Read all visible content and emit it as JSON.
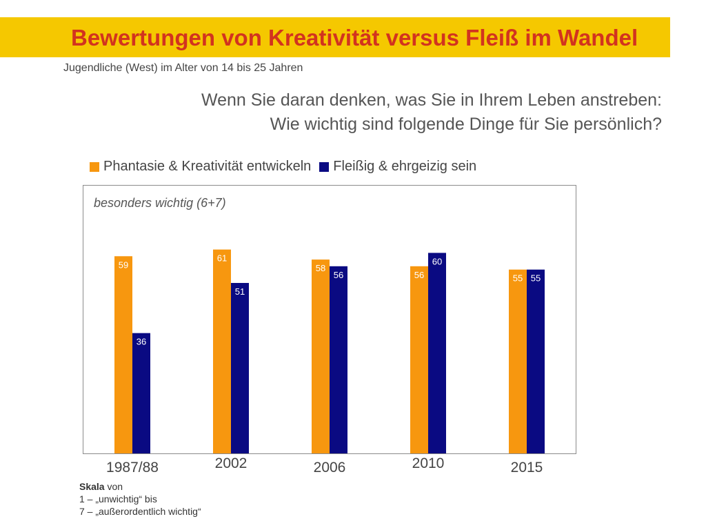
{
  "title": "Bewertungen von Kreativität versus Fleiß im Wandel",
  "subtitle": "Jugendliche (West) im Alter von 14 bis 25 Jahren",
  "question": {
    "line1": "Wenn Sie daran denken, was Sie in Ihrem Leben anstreben:",
    "line2": "Wie wichtig sind folgende Dinge für Sie persönlich?"
  },
  "colors": {
    "title_band": "#f5c800",
    "title_text": "#d2331f",
    "orange": "#f7970f",
    "navy": "#0a0a82"
  },
  "chart_data": {
    "type": "bar",
    "annotation": "besonders wichtig (6+7)",
    "categories": [
      "1987/88",
      "2002",
      "2006",
      "2010",
      "2015"
    ],
    "series": [
      {
        "name": "Phantasie & Kreativität entwickeln",
        "color": "#f7970f",
        "values": [
          59,
          61,
          58,
          56,
          55
        ]
      },
      {
        "name": "Fleißig & ehrgeizig sein",
        "color": "#0a0a82",
        "values": [
          36,
          51,
          56,
          60,
          55
        ]
      }
    ],
    "ylim": [
      0,
      70
    ],
    "grid": false,
    "legend_position": "top"
  },
  "scale_note": {
    "label": "Skala",
    "suffix": " von",
    "line1": "1 – „unwichtig“ bis",
    "line2": "7 – „außerordentlich wichtig“"
  }
}
